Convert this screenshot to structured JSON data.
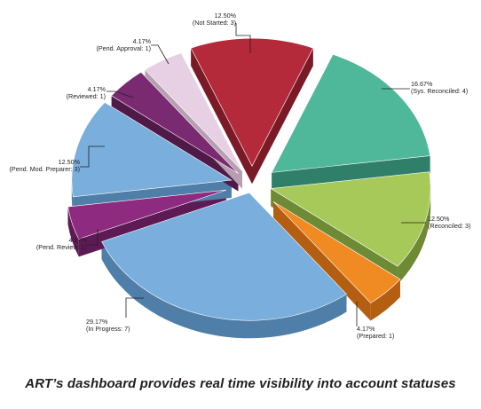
{
  "caption": "ART’s dashboard provides real time visibility into account statuses",
  "chart_data": {
    "type": "pie",
    "title": "",
    "style": "3d-exploded",
    "slices": [
      {
        "pct_label": "12.50%",
        "name_label": "(Not Started: 3)",
        "count": 3,
        "value": 12.5,
        "color": "#b52a3a",
        "side": "#7a1a27"
      },
      {
        "pct_label": "16.67%",
        "name_label": "(Sys. Reconciled: 4)",
        "count": 4,
        "value": 16.67,
        "color": "#4fb79a",
        "side": "#2f7f69"
      },
      {
        "pct_label": "12.50%",
        "name_label": "(Reconciled: 3)",
        "count": 3,
        "value": 12.5,
        "color": "#a7c95a",
        "side": "#6f8a35"
      },
      {
        "pct_label": "4.17%",
        "name_label": "(Prepared: 1)",
        "count": 1,
        "value": 4.17,
        "color": "#f08a22",
        "side": "#b35e10"
      },
      {
        "pct_label": "29.17%",
        "name_label": "(In Progress: 7)",
        "count": 7,
        "value": 29.17,
        "color": "#7aaedc",
        "side": "#4f7ea8"
      },
      {
        "pct_label": "4.17%",
        "name_label": "(Pend. Review: 1)",
        "count": 1,
        "value": 4.17,
        "color": "#8e2a7f",
        "side": "#5e1a55"
      },
      {
        "pct_label": "12.50%",
        "name_label": "(Pend. Mod. Preparer: 3)",
        "count": 3,
        "value": 12.5,
        "color": "#7aaedc",
        "side": "#4f7ea8"
      },
      {
        "pct_label": "4.17%",
        "name_label": "(Reviewed: 1)",
        "count": 1,
        "value": 4.17,
        "color": "#7a2a70",
        "side": "#4f1a48"
      },
      {
        "pct_label": "4.17%",
        "name_label": "(Pend. Approval: 1)",
        "count": 1,
        "value": 4.17,
        "color": "#e8d0e4",
        "side": "#b79fb2"
      }
    ]
  }
}
